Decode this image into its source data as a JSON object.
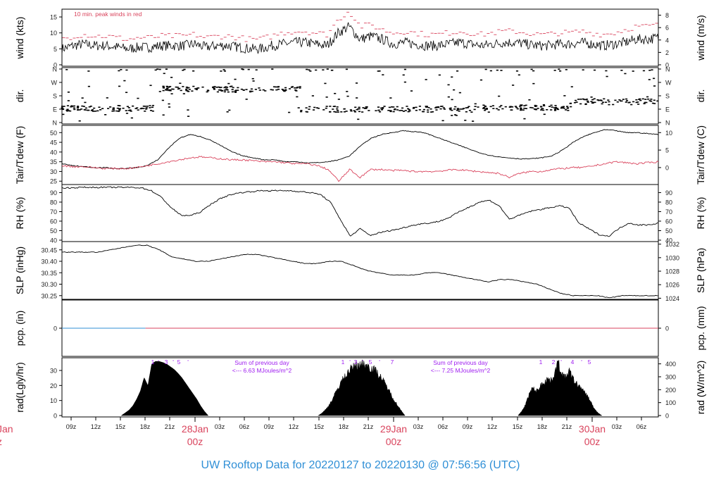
{
  "title": "UW Rooftop Data for 20220127  to  20220130 @ 07:56:56  (UTC)",
  "colors": {
    "black": "#000000",
    "red": "#d9435c",
    "blue": "#2f8fd6",
    "purple": "#a020f0",
    "tick": "#222222"
  },
  "x_axis": {
    "hour_ticks": [
      "09z",
      "12z",
      "15z",
      "18z",
      "21z",
      "03z",
      "06z",
      "09z",
      "12z",
      "15z",
      "18z",
      "21z",
      "03z",
      "06z",
      "09z",
      "12z",
      "15z",
      "18z",
      "21z",
      "03z",
      "06z"
    ],
    "day_labels": [
      {
        "date": "28Jan",
        "time": "00z"
      },
      {
        "date": "29Jan",
        "time": "00z"
      },
      {
        "date": "30Jan",
        "time": "00z"
      }
    ],
    "partial_day_label": {
      "date": "Jan",
      "time": "z"
    }
  },
  "chart_data": [
    {
      "type": "line",
      "panel": "wind",
      "ylabel_left": "wind (kts)",
      "ylabel_right": "wind (m/s)",
      "left_ticks": [
        "0",
        "5",
        "10",
        "15"
      ],
      "right_ticks": [
        "0",
        "2",
        "4",
        "6",
        "8"
      ],
      "ylim": [
        0,
        17
      ],
      "annotation": "10 min. peak winds in red",
      "series": [
        {
          "color": "black",
          "approx_values_kts": [
            5,
            6,
            6.5,
            6,
            6,
            5.5,
            5,
            5.5,
            5.5,
            6,
            6,
            6,
            6.5,
            5.5,
            6,
            6,
            5.5,
            5,
            5,
            6,
            6.5,
            7,
            7,
            6.5,
            6,
            10,
            12,
            8,
            9,
            8,
            6.5,
            7,
            6.5,
            6,
            6,
            6.5,
            7,
            6.5,
            6,
            6.5,
            7,
            7,
            6.5,
            6,
            6,
            6.5,
            6.5,
            7,
            6.5,
            6,
            6.5,
            7,
            8,
            8,
            8.5
          ]
        },
        {
          "color": "red",
          "approx_values_kts": [
            8,
            9,
            9.5,
            9,
            9,
            8.5,
            8,
            8.5,
            8.5,
            9,
            9,
            9,
            9.5,
            8.5,
            9,
            9,
            8.5,
            8,
            8,
            9,
            10,
            10.5,
            10.5,
            10,
            9.5,
            14,
            17,
            12,
            12.5,
            11,
            10,
            10.5,
            10,
            9.5,
            9.5,
            10,
            10.5,
            10,
            9.5,
            10,
            10.5,
            10.5,
            10,
            9.5,
            9.5,
            10,
            10,
            10.5,
            10,
            9.5,
            10,
            11,
            12,
            12,
            12.5
          ]
        }
      ]
    },
    {
      "type": "scatter",
      "panel": "direction",
      "ylabel_left": "dir.",
      "ylabel_right": "dir.",
      "left_ticks": [
        "N",
        "E",
        "S",
        "W",
        "N"
      ],
      "right_ticks": [
        "N",
        "E",
        "S",
        "W",
        "N"
      ],
      "segments_deg": [
        [
          0,
          0.16,
          95
        ],
        [
          0.16,
          0.4,
          225
        ],
        [
          0.4,
          0.55,
          90
        ],
        [
          0.55,
          0.7,
          90
        ],
        [
          0.7,
          0.85,
          100
        ],
        [
          0.85,
          1,
          140
        ]
      ]
    },
    {
      "type": "line",
      "panel": "temperature",
      "ylabel_left": "Tair/Tdew (F)",
      "ylabel_right": "Tair/Tdew (C)",
      "left_ticks": [
        "25",
        "30",
        "35",
        "40",
        "45",
        "50"
      ],
      "right_ticks": [
        "0",
        "5",
        "10"
      ],
      "ylim": [
        24,
        53
      ],
      "series": [
        {
          "color": "black",
          "values": [
            34,
            33,
            32.5,
            32,
            32,
            31.5,
            31.5,
            32,
            33,
            36,
            42,
            47,
            49,
            48,
            46,
            43,
            40,
            38,
            37,
            36,
            36,
            35,
            35,
            34.5,
            34.5,
            35,
            36,
            38,
            43,
            47,
            49,
            50,
            51,
            50.5,
            50,
            48,
            46,
            44,
            42,
            40,
            38.5,
            37.5,
            37,
            36.5,
            36.5,
            37,
            38,
            41,
            45,
            48,
            50,
            51.5,
            51,
            50,
            50,
            49.5,
            49
          ]
        },
        {
          "color": "red",
          "values": [
            33,
            32.5,
            32.5,
            32,
            31.5,
            31.5,
            31.5,
            32,
            33,
            34,
            35,
            36,
            37,
            37.5,
            37,
            36.5,
            36,
            36,
            35.5,
            35,
            35,
            34.5,
            34,
            34,
            33,
            31,
            25,
            31,
            27,
            31,
            31,
            30.5,
            30.5,
            30,
            30,
            30,
            30.5,
            31,
            30.5,
            30,
            29.5,
            29,
            27,
            29,
            30,
            30,
            31,
            31.5,
            32,
            32,
            33,
            34,
            35,
            34.5,
            34,
            34.5,
            35
          ]
        }
      ]
    },
    {
      "type": "line",
      "panel": "relative_humidity",
      "ylabel_left": "RH (%)",
      "ylabel_right": "RH (%)",
      "left_ticks": [
        "40",
        "50",
        "60",
        "70",
        "80",
        "90"
      ],
      "right_ticks": [
        "40",
        "50",
        "60",
        "70",
        "80",
        "90"
      ],
      "ylim": [
        40,
        97
      ],
      "series": [
        {
          "color": "black",
          "values": [
            95,
            95,
            95.5,
            95.5,
            95.5,
            95.5,
            95.5,
            95.5,
            95,
            92,
            85,
            74,
            66,
            66,
            70,
            78,
            84,
            88,
            90,
            91,
            92,
            92,
            92,
            92,
            91,
            90,
            88,
            80,
            62,
            44,
            52,
            45,
            48,
            50,
            52,
            55,
            57,
            58,
            60,
            64,
            70,
            75,
            80,
            82,
            76,
            62,
            66,
            70,
            72,
            74,
            76,
            74,
            58,
            52,
            46,
            44,
            52,
            58,
            56,
            56,
            58
          ]
        }
      ]
    },
    {
      "type": "line",
      "panel": "pressure",
      "ylabel_left": "SLP (inHg)",
      "ylabel_right": "SLP (hPa)",
      "left_ticks": [
        "30.25",
        "30.30",
        "30.35",
        "30.40",
        "30.45"
      ],
      "right_ticks": [
        "1024",
        "1026",
        "1028",
        "1030",
        "1032"
      ],
      "ylim": [
        30.24,
        30.48
      ],
      "series": [
        {
          "color": "black",
          "values": [
            30.44,
            30.44,
            30.44,
            30.44,
            30.45,
            30.46,
            30.47,
            30.47,
            30.45,
            30.42,
            30.41,
            30.4,
            30.4,
            30.41,
            30.42,
            30.43,
            30.43,
            30.42,
            30.41,
            30.4,
            30.39,
            30.39,
            30.4,
            30.4,
            30.38,
            30.36,
            30.35,
            30.34,
            30.34,
            30.34,
            30.35,
            30.35,
            30.34,
            30.33,
            30.32,
            30.31,
            30.32,
            30.32,
            30.31,
            30.3,
            30.28,
            30.26,
            30.25,
            30.25,
            30.25,
            30.24,
            30.25,
            30.25,
            30.25,
            30.25
          ]
        }
      ]
    },
    {
      "type": "line",
      "panel": "precipitation",
      "ylabel_left": "pcp. (in)",
      "ylabel_right": "pcp. (mm)",
      "left_ticks": [
        "0"
      ],
      "right_ticks": [
        "0"
      ],
      "series": [
        {
          "color": "blue",
          "range": [
            0,
            0.14
          ],
          "value": 0
        },
        {
          "color": "red",
          "range": [
            0.14,
            1
          ],
          "value": 0
        }
      ]
    },
    {
      "type": "area",
      "panel": "radiation",
      "ylabel_left": "rad(Lgly/hr)",
      "ylabel_right": "rad (W/m^2)",
      "left_ticks": [
        "0",
        "10",
        "20",
        "30"
      ],
      "right_ticks": [
        "0",
        "100",
        "200",
        "300",
        "400"
      ],
      "ylim": [
        0,
        37.5
      ],
      "days": [
        {
          "start": 0.1,
          "end": 0.245,
          "peak": 36,
          "hump": [
            0,
            0.05,
            0.1,
            0.18,
            0.3,
            0.45,
            0.7,
            0.55,
            0.95,
            1,
            1,
            0.98,
            0.95,
            0.9,
            0.85,
            0.78,
            0.7,
            0.6,
            0.5,
            0.4,
            0.3,
            0.18,
            0.08,
            0
          ]
        },
        {
          "start": 0.43,
          "end": 0.575,
          "peak": 36,
          "hump": [
            0,
            0.05,
            0.12,
            0.22,
            0.35,
            0.5,
            0.65,
            0.75,
            0.85,
            0.92,
            0.97,
            1,
            1,
            0.97,
            0.93,
            0.88,
            0.8,
            0.7,
            0.58,
            0.45,
            0.32,
            0.2,
            0.1,
            0
          ]
        },
        {
          "start": 0.765,
          "end": 0.905,
          "peak": 37,
          "hump": [
            0,
            0.08,
            0.2,
            0.4,
            0.52,
            0.45,
            0.55,
            0.62,
            0.7,
            0.65,
            0.8,
            1,
            0.8,
            0.7,
            0.85,
            0.7,
            0.6,
            0.55,
            0.45,
            0.38,
            0.26,
            0.12,
            0.05,
            0
          ]
        }
      ],
      "hour_markers": [
        {
          "day": 1,
          "labels": [
            "1",
            "'",
            "3",
            "'",
            "5",
            "'"
          ]
        },
        {
          "day": 2,
          "labels": [
            "1",
            "'",
            "3",
            "'",
            "5",
            "'",
            "7"
          ]
        },
        {
          "day": 3,
          "labels": [
            "1",
            "2",
            "'",
            "4",
            "'",
            "5"
          ]
        }
      ],
      "sums": [
        {
          "line1": "Sum of previous day",
          "line2": "<--- 6.63 MJoules/m^2"
        },
        {
          "line1": "Sum of previous day",
          "line2": "<--- 7.25 MJoules/m^2"
        }
      ]
    }
  ]
}
